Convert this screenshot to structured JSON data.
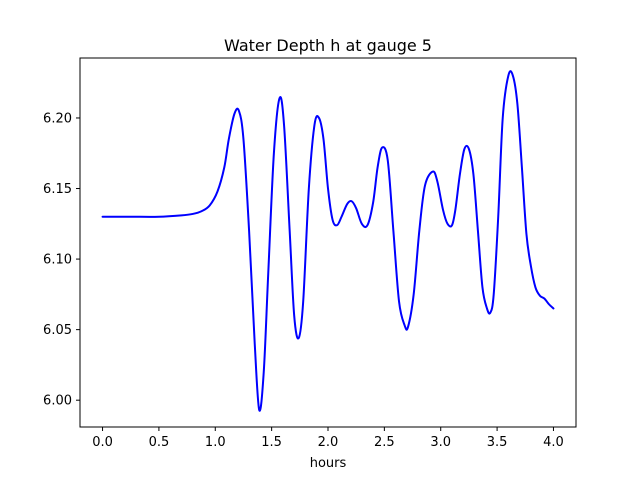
{
  "chart_data": {
    "type": "line",
    "title": "Water Depth h at gauge 5",
    "xlabel": "hours",
    "ylabel": "",
    "xlim": [
      -0.2,
      4.2
    ],
    "ylim": [
      5.981,
      6.2425
    ],
    "xticks": [
      0.0,
      0.5,
      1.0,
      1.5,
      2.0,
      2.5,
      3.0,
      3.5,
      4.0
    ],
    "xtick_labels": [
      "0.0",
      "0.5",
      "1.0",
      "1.5",
      "2.0",
      "2.5",
      "3.0",
      "3.5",
      "4.0"
    ],
    "yticks": [
      6.0,
      6.05,
      6.1,
      6.15,
      6.2
    ],
    "ytick_labels": [
      "6.00",
      "6.05",
      "6.10",
      "6.15",
      "6.20"
    ],
    "grid": false,
    "series": [
      {
        "color": "#0000ff",
        "x": [
          0.0,
          0.25,
          0.5,
          0.7,
          0.8,
          0.88,
          0.95,
          1.02,
          1.08,
          1.12,
          1.17,
          1.21,
          1.25,
          1.3,
          1.35,
          1.39,
          1.43,
          1.47,
          1.52,
          1.57,
          1.61,
          1.66,
          1.7,
          1.74,
          1.78,
          1.83,
          1.88,
          1.92,
          1.96,
          2.0,
          2.04,
          2.08,
          2.12,
          2.17,
          2.21,
          2.25,
          2.3,
          2.35,
          2.4,
          2.44,
          2.48,
          2.53,
          2.58,
          2.63,
          2.68,
          2.71,
          2.76,
          2.81,
          2.86,
          2.93,
          2.97,
          3.02,
          3.06,
          3.1,
          3.13,
          3.17,
          3.21,
          3.25,
          3.29,
          3.33,
          3.37,
          3.41,
          3.44,
          3.47,
          3.51,
          3.55,
          3.6,
          3.64,
          3.68,
          3.72,
          3.76,
          3.8,
          3.84,
          3.88,
          3.92,
          3.96,
          4.0
        ],
        "y": [
          6.13,
          6.13,
          6.13,
          6.131,
          6.132,
          6.134,
          6.138,
          6.148,
          6.165,
          6.185,
          6.203,
          6.205,
          6.185,
          6.12,
          6.04,
          5.993,
          6.02,
          6.09,
          6.175,
          6.214,
          6.195,
          6.12,
          6.06,
          6.044,
          6.07,
          6.15,
          6.195,
          6.2,
          6.185,
          6.15,
          6.128,
          6.124,
          6.13,
          6.139,
          6.141,
          6.136,
          6.125,
          6.124,
          6.14,
          6.165,
          6.179,
          6.17,
          6.12,
          6.07,
          6.053,
          6.052,
          6.075,
          6.12,
          6.152,
          6.162,
          6.155,
          6.135,
          6.125,
          6.124,
          6.135,
          6.16,
          6.178,
          6.178,
          6.16,
          6.12,
          6.08,
          6.065,
          6.062,
          6.075,
          6.13,
          6.2,
          6.23,
          6.23,
          6.21,
          6.165,
          6.118,
          6.095,
          6.08,
          6.074,
          6.072,
          6.068,
          6.065
        ]
      }
    ]
  }
}
